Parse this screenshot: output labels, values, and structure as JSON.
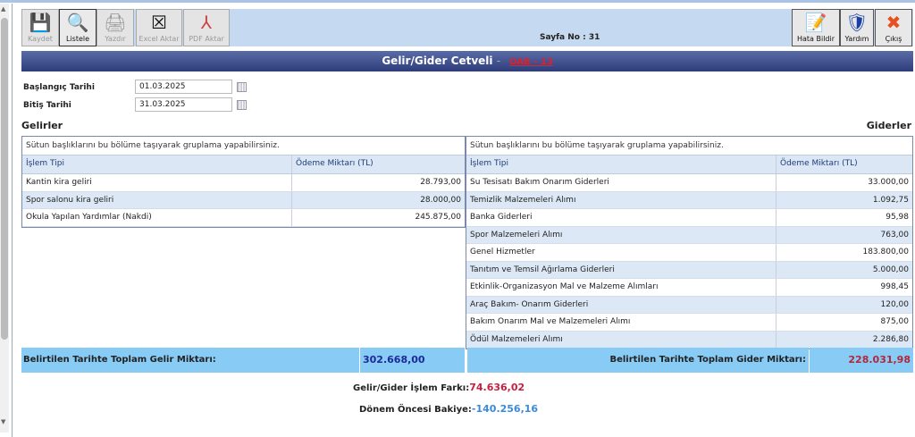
{
  "toolbar": {
    "buttons": [
      {
        "label": "Kaydet",
        "icon": "floppy-icon"
      },
      {
        "label": "Listele",
        "icon": "magnifier-icon"
      },
      {
        "label": "Yazdır",
        "icon": "printer-icon"
      },
      {
        "label": "Excel Aktar",
        "icon": "excel-icon"
      },
      {
        "label": "PDF Aktar",
        "icon": "pdf-icon"
      }
    ],
    "page_no": "Sayfa No : 31",
    "right_buttons": [
      {
        "label": "Hata Bildir",
        "icon": "report-icon"
      },
      {
        "label": "Yardım",
        "icon": "help-icon"
      },
      {
        "label": "Çıkış",
        "icon": "close-icon"
      }
    ]
  },
  "title": {
    "text": "Gelir/Gider Cetveli",
    "sep": "-",
    "code": "OAB - 13"
  },
  "filters": {
    "start_label": "Başlangıç Tarihi",
    "start_value": "01.03.2025",
    "end_label": "Bitiş Tarihi",
    "end_value": "31.03.2025"
  },
  "income": {
    "title": "Gelirler",
    "group_hint": "Sütun başlıklarını bu bölüme taşıyarak gruplama yapabilirsiniz.",
    "columns": [
      "İşlem Tipi",
      "Ödeme Miktarı (TL)"
    ],
    "rows": [
      [
        "Kantin kira geliri",
        "28.793,00"
      ],
      [
        "Spor salonu kira geliri",
        "28.000,00"
      ],
      [
        "Okula Yapılan Yardımlar (Nakdi)",
        "245.875,00"
      ]
    ]
  },
  "expense": {
    "title": "Giderler",
    "group_hint": "Sütun başlıklarını bu bölüme taşıyarak gruplama yapabilirsiniz.",
    "columns": [
      "İşlem Tipi",
      "Ödeme Miktarı (TL)"
    ],
    "rows": [
      [
        "Su Tesisatı Bakım Onarım Giderleri",
        "33.000,00"
      ],
      [
        "Temizlik Malzemeleri Alımı",
        "1.092,75"
      ],
      [
        "Banka Giderleri",
        "95,98"
      ],
      [
        "Spor Malzemeleri Alımı",
        "763,00"
      ],
      [
        "Genel Hizmetler",
        "183.800,00"
      ],
      [
        "Tanıtım ve Temsil Ağırlama Giderleri",
        "5.000,00"
      ],
      [
        "Etkinlik-Organizasyon Mal ve Malzeme Alımları",
        "998,45"
      ],
      [
        "Araç Bakım- Onarım Giderleri",
        "120,00"
      ],
      [
        "Bakım Onarım Mal ve Malzemeleri Alımı",
        "875,00"
      ],
      [
        "Ödül Malzemeleri Alımı",
        "2.286,80"
      ]
    ]
  },
  "totals": {
    "income_label": "Belirtilen Tarihte Toplam Gelir Miktarı:",
    "income_value": "302.668,00",
    "expense_label": "Belirtilen Tarihte Toplam Gider Miktarı:",
    "expense_value": "228.031,98"
  },
  "summary": {
    "diff_label": "Gelir/Gider İşlem Farkı:",
    "diff_value": "74.636,02",
    "prev_label": "Dönem Öncesi Bakiye:",
    "prev_value": "-140.256,16"
  },
  "colors": {
    "title_bar": "#2e3d7a",
    "totals_bg": "#88ccf5",
    "income_total": "#1a2a9a",
    "expense_total": "#b0283c",
    "diff": "#c8203c",
    "prev": "#3a8ad8"
  }
}
